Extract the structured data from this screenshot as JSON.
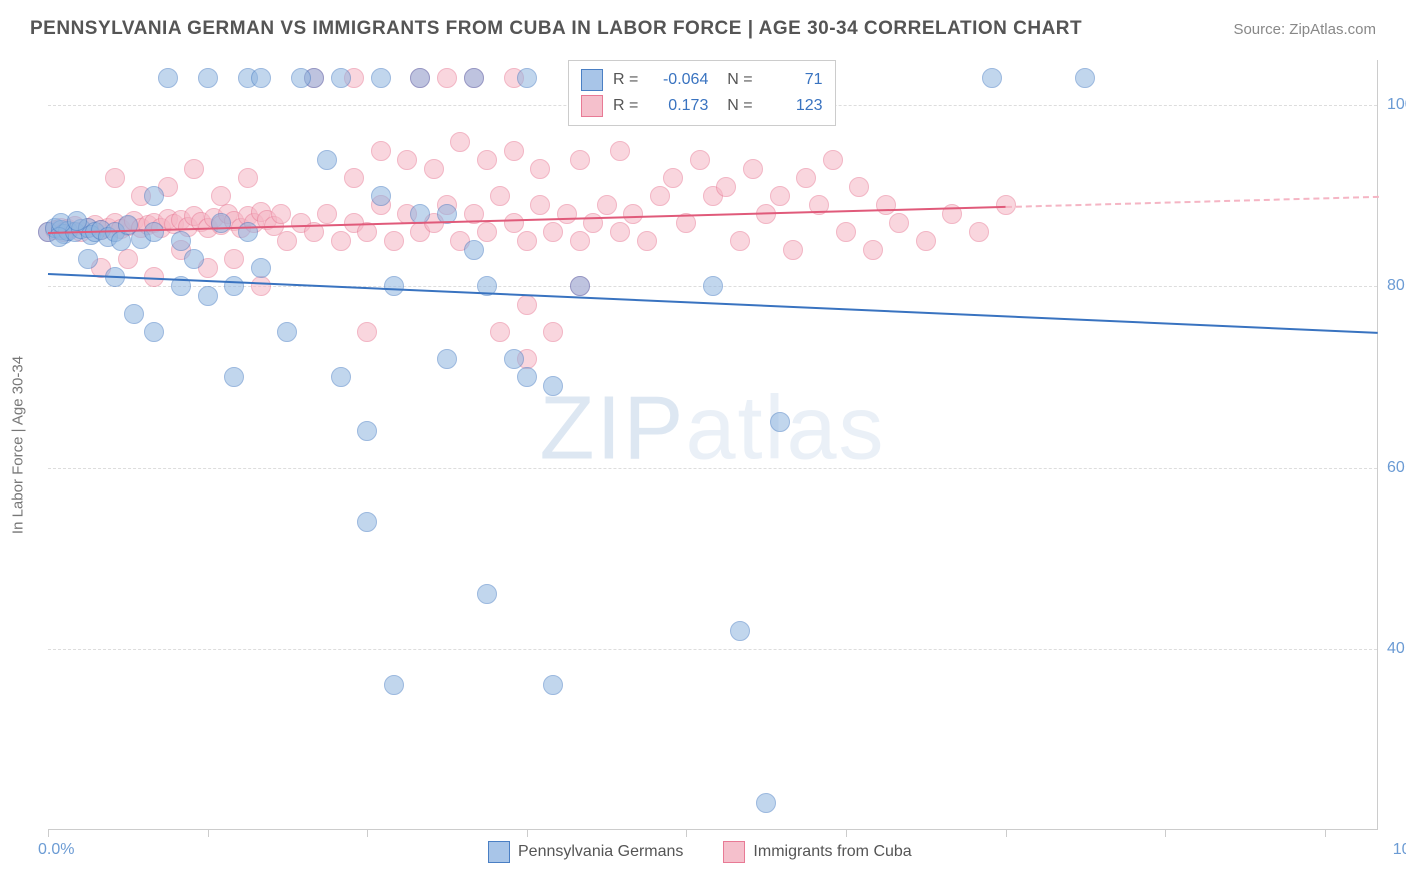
{
  "header": {
    "title": "PENNSYLVANIA GERMAN VS IMMIGRANTS FROM CUBA IN LABOR FORCE | AGE 30-34 CORRELATION CHART",
    "source": "Source: ZipAtlas.com"
  },
  "chart": {
    "type": "scatter",
    "ylabel": "In Labor Force | Age 30-34",
    "xlim": [
      0,
      100
    ],
    "ylim": [
      20,
      105
    ],
    "ytick_values": [
      40,
      60,
      80,
      100
    ],
    "ytick_labels": [
      "40.0%",
      "60.0%",
      "80.0%",
      "100.0%"
    ],
    "xtick_values": [
      0,
      12,
      24,
      36,
      48,
      60,
      72,
      84,
      96
    ],
    "xlabel_start": "0.0%",
    "xlabel_end": "100.0%",
    "background_color": "#ffffff",
    "grid_color": "#dddddd",
    "marker_size": 20,
    "marker_opacity": 0.55,
    "watermark": "ZIPatlas",
    "series": {
      "blue": {
        "name": "Pennsylvania Germans",
        "color_fill": "#8fb5e0",
        "color_stroke": "#4a7fc4",
        "R": "-0.064",
        "N": "71",
        "trend": {
          "x1": 0,
          "y1": 81.5,
          "x2": 100,
          "y2": 75,
          "color": "#3973c0",
          "solid_until": 100
        },
        "points": [
          [
            0,
            86
          ],
          [
            0.5,
            86.5
          ],
          [
            1,
            86.2
          ],
          [
            1.2,
            85.8
          ],
          [
            1.5,
            86.1
          ],
          [
            0.8,
            85.5
          ],
          [
            2,
            86
          ],
          [
            2.5,
            86.3
          ],
          [
            3,
            86.5
          ],
          [
            3.2,
            85.7
          ],
          [
            3.5,
            86
          ],
          [
            4,
            86.2
          ],
          [
            1,
            87
          ],
          [
            2.2,
            87.2
          ],
          [
            3,
            83
          ],
          [
            4.5,
            85.5
          ],
          [
            5,
            86
          ],
          [
            5.5,
            85
          ],
          [
            6,
            86.8
          ],
          [
            7,
            85.2
          ],
          [
            8,
            86
          ],
          [
            5,
            81
          ],
          [
            6.5,
            77
          ],
          [
            8,
            75
          ],
          [
            10,
            85
          ],
          [
            10,
            80
          ],
          [
            11,
            83
          ],
          [
            12,
            79
          ],
          [
            13,
            87
          ],
          [
            15,
            86
          ],
          [
            14,
            80
          ],
          [
            16,
            82
          ],
          [
            8,
            90
          ],
          [
            12,
            103
          ],
          [
            15,
            103
          ],
          [
            20,
            103
          ],
          [
            22,
            103
          ],
          [
            25,
            103
          ],
          [
            25,
            90
          ],
          [
            21,
            94
          ],
          [
            18,
            75
          ],
          [
            22,
            70
          ],
          [
            24,
            64
          ],
          [
            24,
            54
          ],
          [
            26,
            80
          ],
          [
            26,
            36
          ],
          [
            28,
            103
          ],
          [
            30,
            88
          ],
          [
            30,
            72
          ],
          [
            32,
            84
          ],
          [
            33,
            80
          ],
          [
            33,
            46
          ],
          [
            35,
            72
          ],
          [
            36,
            103
          ],
          [
            36,
            70
          ],
          [
            38,
            69
          ],
          [
            38,
            36
          ],
          [
            40,
            80
          ],
          [
            43,
            103
          ],
          [
            50,
            80
          ],
          [
            52,
            42
          ],
          [
            54,
            23
          ],
          [
            55,
            65
          ],
          [
            71,
            103
          ],
          [
            78,
            103
          ],
          [
            9,
            103
          ],
          [
            14,
            70
          ],
          [
            16,
            103
          ],
          [
            19,
            103
          ],
          [
            28,
            88
          ],
          [
            32,
            103
          ]
        ]
      },
      "pink": {
        "name": "Immigrants from Cuba",
        "color_fill": "#f5b5c4",
        "color_stroke": "#e87a95",
        "R": "0.173",
        "N": "123",
        "trend": {
          "x1": 0,
          "y1": 86,
          "x2": 100,
          "y2": 90,
          "color": "#e05a7a",
          "solid_until": 72
        },
        "points": [
          [
            0,
            86
          ],
          [
            0.5,
            86.2
          ],
          [
            1,
            86.5
          ],
          [
            1.2,
            86
          ],
          [
            1.5,
            86.3
          ],
          [
            2,
            86.7
          ],
          [
            2.5,
            86
          ],
          [
            3,
            86.4
          ],
          [
            3.5,
            86.8
          ],
          [
            4,
            86.2
          ],
          [
            4.5,
            86.5
          ],
          [
            5,
            87
          ],
          [
            5.5,
            86.3
          ],
          [
            6,
            86.7
          ],
          [
            6.5,
            87.2
          ],
          [
            7,
            86.5
          ],
          [
            7.5,
            86.8
          ],
          [
            8,
            87
          ],
          [
            8.5,
            86.4
          ],
          [
            9,
            87.5
          ],
          [
            9.5,
            86.9
          ],
          [
            10,
            87.3
          ],
          [
            10.5,
            86.6
          ],
          [
            11,
            87.8
          ],
          [
            11.5,
            87.1
          ],
          [
            12,
            86.5
          ],
          [
            12.5,
            87.6
          ],
          [
            13,
            86.8
          ],
          [
            13.5,
            88
          ],
          [
            14,
            87.2
          ],
          [
            14.5,
            86.5
          ],
          [
            15,
            87.8
          ],
          [
            15.5,
            87
          ],
          [
            16,
            88.2
          ],
          [
            16.5,
            87.3
          ],
          [
            17,
            86.7
          ],
          [
            17.5,
            88
          ],
          [
            5,
            92
          ],
          [
            7,
            90
          ],
          [
            9,
            91
          ],
          [
            11,
            93
          ],
          [
            13,
            90
          ],
          [
            15,
            92
          ],
          [
            4,
            82
          ],
          [
            6,
            83
          ],
          [
            8,
            81
          ],
          [
            10,
            84
          ],
          [
            12,
            82
          ],
          [
            14,
            83
          ],
          [
            16,
            80
          ],
          [
            18,
            85
          ],
          [
            19,
            87
          ],
          [
            20,
            86
          ],
          [
            21,
            88
          ],
          [
            22,
            85
          ],
          [
            23,
            87
          ],
          [
            24,
            86
          ],
          [
            25,
            89
          ],
          [
            26,
            85
          ],
          [
            27,
            88
          ],
          [
            28,
            86
          ],
          [
            29,
            87
          ],
          [
            30,
            89
          ],
          [
            31,
            85
          ],
          [
            32,
            88
          ],
          [
            33,
            86
          ],
          [
            34,
            90
          ],
          [
            35,
            87
          ],
          [
            36,
            85
          ],
          [
            37,
            89
          ],
          [
            38,
            86
          ],
          [
            39,
            88
          ],
          [
            40,
            85
          ],
          [
            41,
            87
          ],
          [
            42,
            89
          ],
          [
            43,
            86
          ],
          [
            44,
            88
          ],
          [
            45,
            85
          ],
          [
            46,
            90
          ],
          [
            40,
            80
          ],
          [
            38,
            75
          ],
          [
            36,
            78
          ],
          [
            20,
            103
          ],
          [
            23,
            103
          ],
          [
            28,
            103
          ],
          [
            30,
            103
          ],
          [
            32,
            103
          ],
          [
            35,
            103
          ],
          [
            25,
            95
          ],
          [
            27,
            94
          ],
          [
            29,
            93
          ],
          [
            31,
            96
          ],
          [
            33,
            94
          ],
          [
            35,
            95
          ],
          [
            37,
            93
          ],
          [
            48,
            87
          ],
          [
            50,
            90
          ],
          [
            52,
            85
          ],
          [
            54,
            88
          ],
          [
            56,
            84
          ],
          [
            58,
            89
          ],
          [
            60,
            86
          ],
          [
            62,
            84
          ],
          [
            64,
            87
          ],
          [
            66,
            85
          ],
          [
            68,
            88
          ],
          [
            70,
            86
          ],
          [
            72,
            89
          ],
          [
            47,
            92
          ],
          [
            49,
            94
          ],
          [
            51,
            91
          ],
          [
            53,
            93
          ],
          [
            55,
            90
          ],
          [
            57,
            92
          ],
          [
            59,
            94
          ],
          [
            61,
            91
          ],
          [
            63,
            89
          ],
          [
            23,
            92
          ],
          [
            24,
            75
          ],
          [
            34,
            75
          ],
          [
            36,
            72
          ],
          [
            40,
            94
          ],
          [
            43,
            95
          ]
        ]
      }
    },
    "bottom_legend": [
      {
        "swatch": "blue",
        "label": "Pennsylvania Germans"
      },
      {
        "swatch": "pink",
        "label": "Immigrants from Cuba"
      }
    ]
  }
}
